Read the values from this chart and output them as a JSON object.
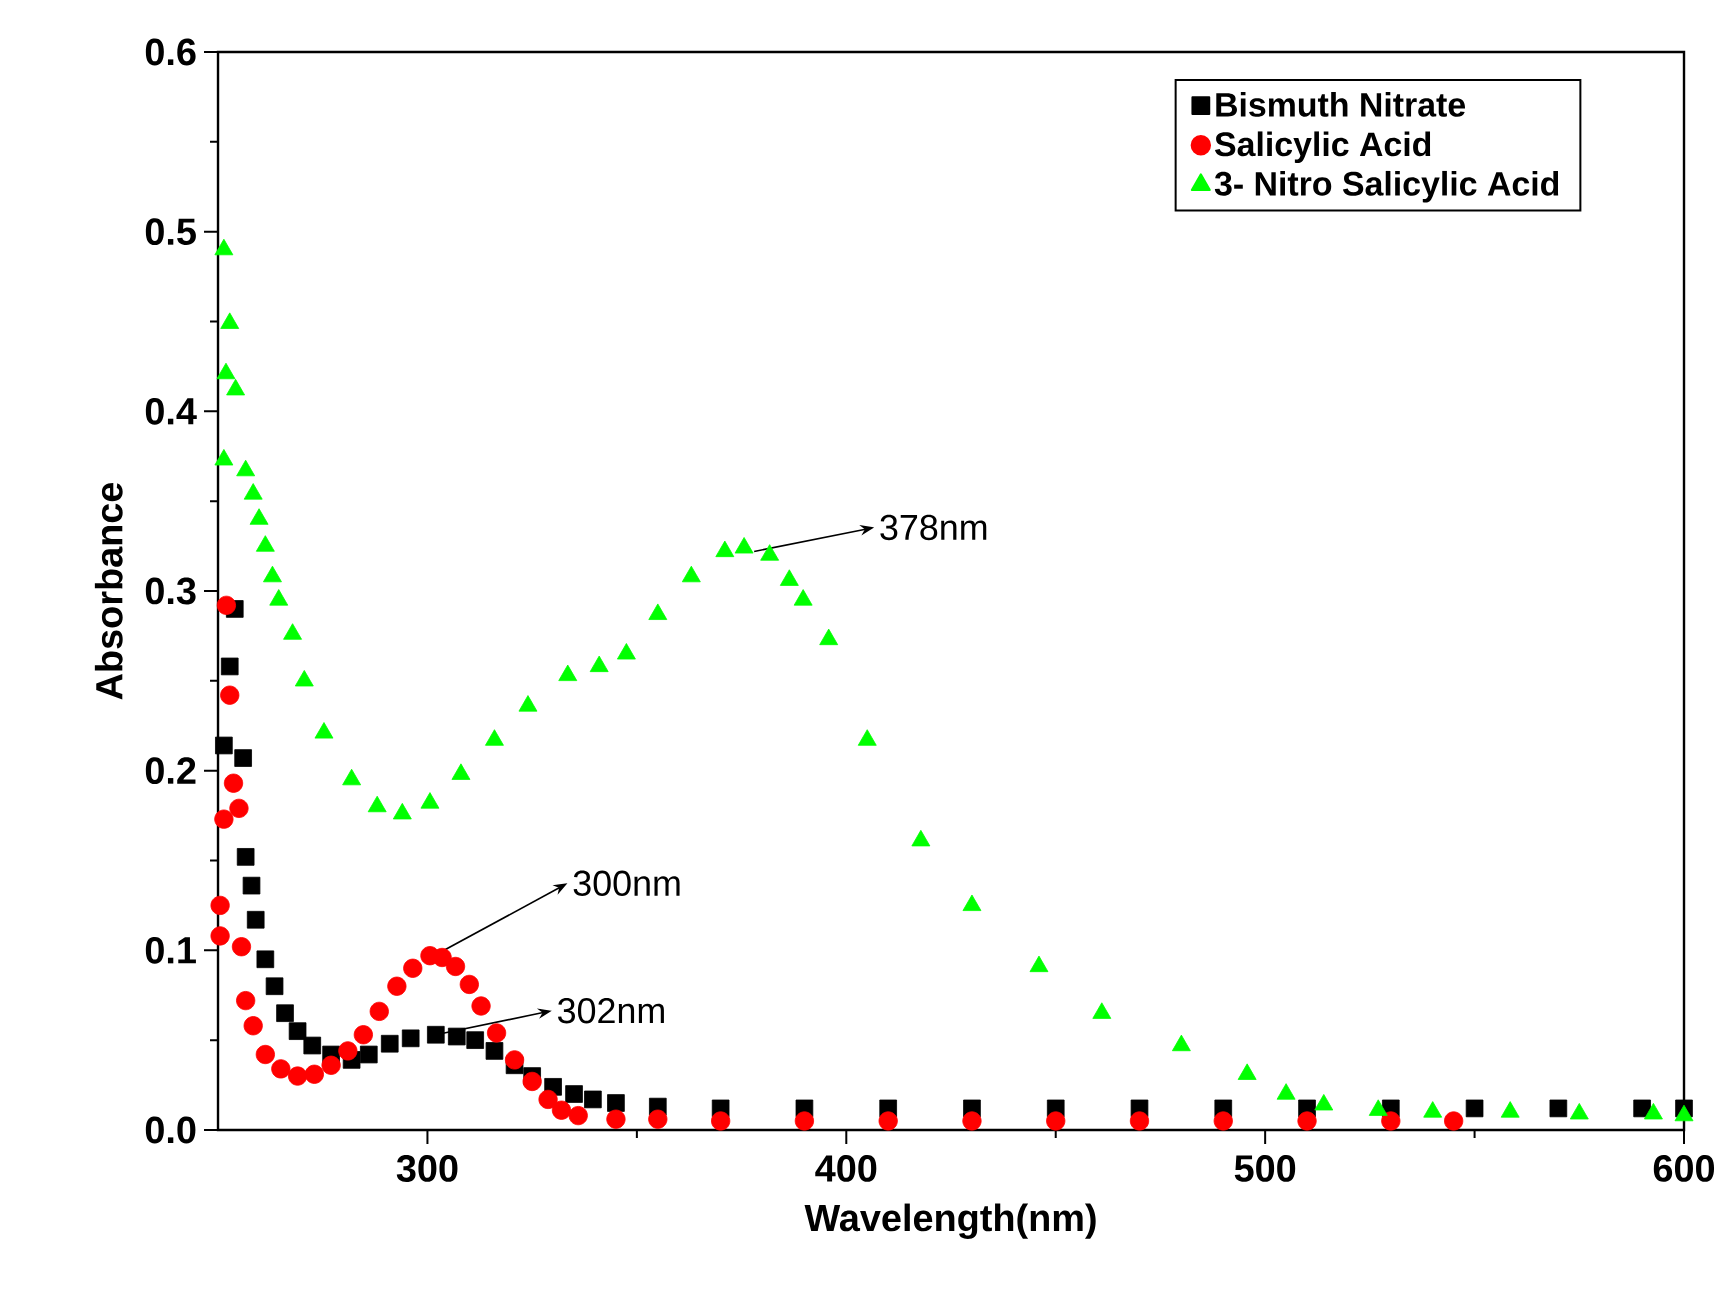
{
  "chart_data": {
    "type": "scatter",
    "xlabel": "Wavelength(nm)",
    "ylabel": "Absorbance",
    "xlim": [
      250,
      600
    ],
    "ylim": [
      0,
      0.6
    ],
    "xticks": [
      300,
      400,
      500,
      600
    ],
    "yticks": [
      {
        "value": 0,
        "label": "0.0"
      },
      0.1,
      0.2,
      0.3,
      0.4,
      0.5,
      0.6
    ],
    "legend": "top right",
    "series": [
      {
        "name": "Bismuth Nitrate",
        "color": "#000000",
        "marker": "square",
        "x": [
          251.4,
          252.8,
          254,
          256,
          256.6,
          258,
          259,
          261.3,
          263.5,
          266,
          269,
          272.5,
          277,
          281.9,
          286,
          291,
          296,
          302,
          307,
          311.4,
          316,
          320.8,
          325,
          330,
          335,
          339.5,
          345,
          355,
          370,
          390,
          410,
          430,
          450,
          470,
          490,
          510,
          530,
          550,
          570,
          590,
          600
        ],
        "values": [
          0.214,
          0.258,
          0.29,
          0.207,
          0.152,
          0.136,
          0.117,
          0.095,
          0.08,
          0.065,
          0.055,
          0.047,
          0.042,
          0.039,
          0.042,
          0.048,
          0.051,
          0.053,
          0.052,
          0.05,
          0.044,
          0.036,
          0.03,
          0.024,
          0.02,
          0.017,
          0.015,
          0.013,
          0.012,
          0.012,
          0.012,
          0.012,
          0.012,
          0.012,
          0.012,
          0.012,
          0.012,
          0.012,
          0.012,
          0.012,
          0.012
        ]
      },
      {
        "name": "Salicylic Acid",
        "color": "#ff0000",
        "marker": "circle",
        "x": [
          250.5,
          250.5,
          251.4,
          252,
          252.8,
          253.7,
          255,
          255.6,
          256.6,
          258.4,
          261.3,
          265,
          269,
          273,
          277,
          281,
          284.7,
          288.5,
          292.7,
          296.5,
          300.6,
          303.5,
          306.7,
          310,
          312.8,
          316.5,
          320.8,
          325,
          328.8,
          332,
          336,
          345,
          355,
          370,
          390,
          410,
          430,
          450,
          470,
          490,
          510,
          530,
          545
        ],
        "values": [
          0.108,
          0.125,
          0.173,
          0.292,
          0.242,
          0.193,
          0.179,
          0.102,
          0.072,
          0.058,
          0.042,
          0.034,
          0.03,
          0.031,
          0.036,
          0.044,
          0.053,
          0.066,
          0.08,
          0.09,
          0.097,
          0.096,
          0.091,
          0.081,
          0.069,
          0.054,
          0.039,
          0.027,
          0.017,
          0.011,
          0.008,
          0.006,
          0.006,
          0.005,
          0.005,
          0.005,
          0.005,
          0.005,
          0.005,
          0.005,
          0.005,
          0.005,
          0.005
        ]
      },
      {
        "name": "3- Nitro Salicylic Acid",
        "color": "#00ff00",
        "marker": "triangle",
        "x": [
          251.4,
          251.4,
          251.9,
          252.8,
          254.2,
          256.6,
          258.4,
          259.8,
          261.3,
          263,
          264.5,
          267.8,
          270.6,
          275.3,
          281.9,
          288,
          294,
          300.6,
          308,
          316,
          324,
          333.5,
          341,
          347.5,
          355,
          363,
          371,
          375.6,
          381.7,
          386.4,
          389.7,
          395.8,
          405,
          417.8,
          430,
          446,
          461,
          480,
          495.7,
          505,
          514,
          527,
          540,
          558.5,
          575,
          592.7,
          600
        ],
        "values": [
          0.373,
          0.49,
          0.421,
          0.449,
          0.412,
          0.367,
          0.354,
          0.34,
          0.325,
          0.308,
          0.295,
          0.276,
          0.25,
          0.221,
          0.195,
          0.18,
          0.176,
          0.182,
          0.198,
          0.217,
          0.236,
          0.253,
          0.258,
          0.265,
          0.287,
          0.308,
          0.322,
          0.324,
          0.32,
          0.306,
          0.295,
          0.273,
          0.217,
          0.161,
          0.125,
          0.091,
          0.065,
          0.047,
          0.031,
          0.02,
          0.014,
          0.011,
          0.01,
          0.01,
          0.009,
          0.009,
          0.008
        ]
      }
    ],
    "annotations": [
      {
        "text": "378nm",
        "x": 378,
        "y": 0.322
      },
      {
        "text": "300nm",
        "x": 300,
        "y": 0.095
      },
      {
        "text": "302nm",
        "x": 302,
        "y": 0.053
      }
    ]
  }
}
